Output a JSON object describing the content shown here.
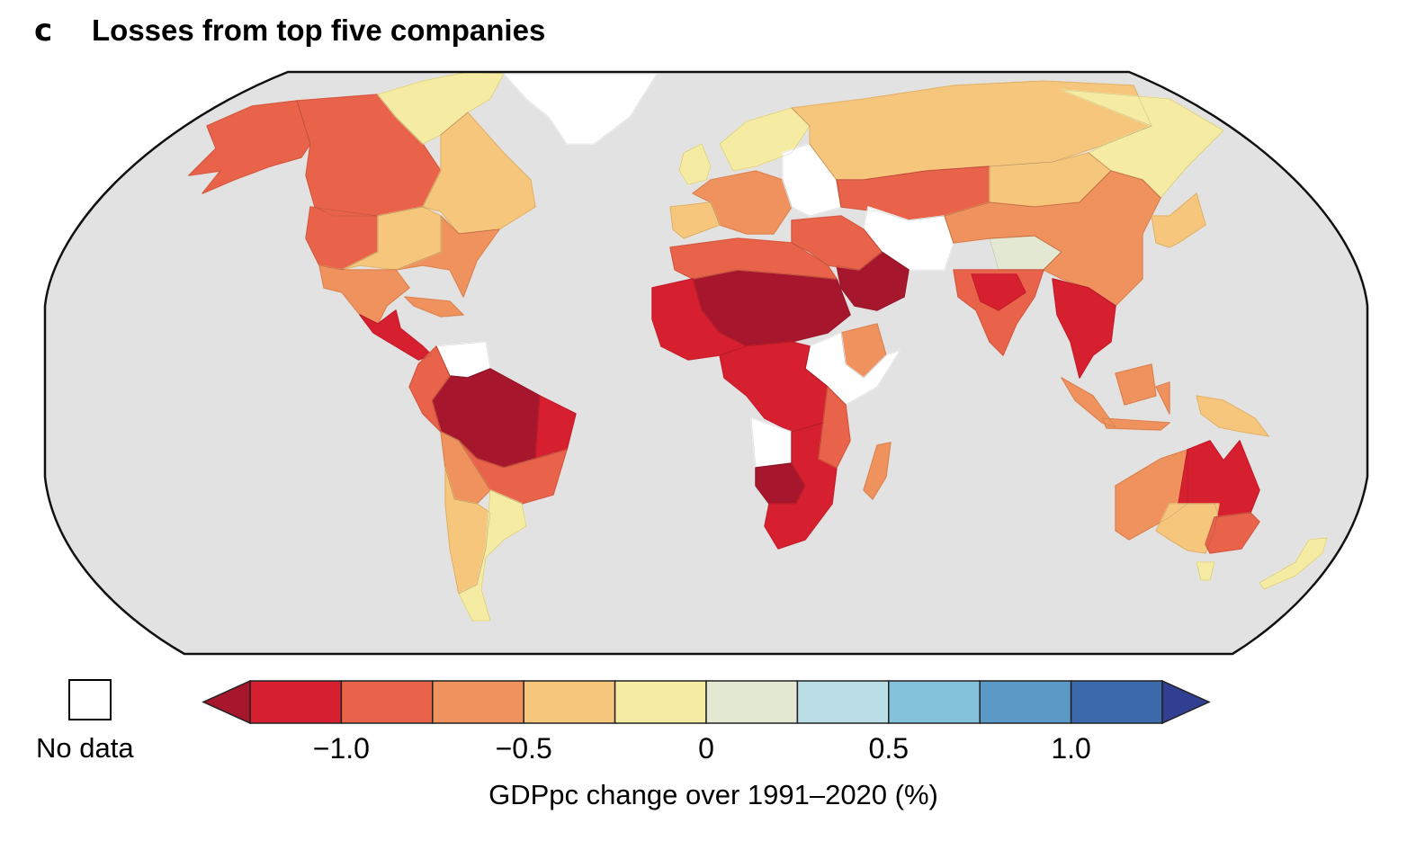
{
  "panel_letter": "c",
  "title": "Losses from top five companies",
  "no_data_label": "No data",
  "colors": {
    "ocean": "#e2e2e2",
    "no_data": "#ffffff",
    "outline": "#111111"
  },
  "legend": {
    "label": "GDPpc change over 1991–2020 (%)",
    "range": [
      -1.25,
      1.25
    ],
    "step": 0.25,
    "extend_low_color": "#a6172d",
    "extend_high_color": "#313f93",
    "bins": [
      {
        "from": -1.25,
        "to": -1.0,
        "color": "#d7202f"
      },
      {
        "from": -1.0,
        "to": -0.75,
        "color": "#e8634a"
      },
      {
        "from": -0.75,
        "to": -0.5,
        "color": "#ef925d"
      },
      {
        "from": -0.5,
        "to": -0.25,
        "color": "#f6c67d"
      },
      {
        "from": -0.25,
        "to": 0.0,
        "color": "#f6eba3"
      },
      {
        "from": 0.0,
        "to": 0.25,
        "color": "#e3e8d3"
      },
      {
        "from": 0.25,
        "to": 0.5,
        "color": "#badde6"
      },
      {
        "from": 0.5,
        "to": 0.75,
        "color": "#84c2dc"
      },
      {
        "from": 0.75,
        "to": 1.0,
        "color": "#5b99c6"
      },
      {
        "from": 1.0,
        "to": 1.25,
        "color": "#3a69ac"
      }
    ],
    "ticks": [
      {
        "value": -1.0,
        "label": "−1.0"
      },
      {
        "value": -0.5,
        "label": "−0.5"
      },
      {
        "value": 0,
        "label": "0"
      },
      {
        "value": 0.5,
        "label": "0.5"
      },
      {
        "value": 1.0,
        "label": "1.0"
      }
    ]
  },
  "chart_data": {
    "type": "heatmap",
    "subtype": "choropleth-world-map",
    "title": "Losses from top five companies",
    "colorbar_label": "GDPpc change over 1991–2020 (%)",
    "colorbar_range": [
      -1.25,
      1.25
    ],
    "colorbar_ticks": [
      -1.0,
      -0.5,
      0,
      0.5,
      1.0
    ],
    "legend_placement": "bottom",
    "regions": [
      {
        "name": "Alaska",
        "value": -0.8
      },
      {
        "name": "Western Canada",
        "value": -0.8
      },
      {
        "name": "Canadian Arctic / Northern Canada",
        "value": -0.1
      },
      {
        "name": "Eastern Canada",
        "value": -0.4
      },
      {
        "name": "Western USA",
        "value": -0.8
      },
      {
        "name": "Central & Eastern USA",
        "value": -0.6
      },
      {
        "name": "US Plains/Midwest",
        "value": -0.4
      },
      {
        "name": "Mexico",
        "value": -0.6
      },
      {
        "name": "Central America",
        "value": -1.1
      },
      {
        "name": "Caribbean",
        "value": -0.6
      },
      {
        "name": "Greenland",
        "value": null
      },
      {
        "name": "Venezuela / Guyanas",
        "value": null
      },
      {
        "name": "Amazon Basin (Brazil)",
        "value": -1.3
      },
      {
        "name": "Northeast Brazil",
        "value": -1.1
      },
      {
        "name": "Colombia / Ecuador / Peru coast",
        "value": -0.8
      },
      {
        "name": "Southern Brazil",
        "value": -0.8
      },
      {
        "name": "Bolivia / Paraguay",
        "value": -0.6
      },
      {
        "name": "Argentina north / Chile",
        "value": -0.4
      },
      {
        "name": "Patagonia / Uruguay",
        "value": -0.1
      },
      {
        "name": "Scandinavia",
        "value": -0.1
      },
      {
        "name": "UK / Ireland",
        "value": -0.1
      },
      {
        "name": "Western & Central Europe",
        "value": -0.6
      },
      {
        "name": "Iberia",
        "value": -0.4
      },
      {
        "name": "Ukraine / Eastern Europe",
        "value": null
      },
      {
        "name": "Russia (north)",
        "value": -0.4
      },
      {
        "name": "Southern Russia / Kazakhstan",
        "value": -0.8
      },
      {
        "name": "Eastern Siberia",
        "value": -0.1
      },
      {
        "name": "Central Asia / Iran",
        "value": null
      },
      {
        "name": "Mongolia",
        "value": -0.4
      },
      {
        "name": "Tibetan Plateau",
        "value": 0.1
      },
      {
        "name": "China",
        "value": -0.6
      },
      {
        "name": "Korea / Japan",
        "value": -0.4
      },
      {
        "name": "India",
        "value": -0.8
      },
      {
        "name": "Northern India",
        "value": -1.1
      },
      {
        "name": "Southeast Asia mainland",
        "value": -1.1
      },
      {
        "name": "Indonesia / Borneo",
        "value": -0.6
      },
      {
        "name": "New Guinea",
        "value": -0.4
      },
      {
        "name": "Arabian Peninsula",
        "value": -1.3
      },
      {
        "name": "Middle East",
        "value": -0.8
      },
      {
        "name": "Sahara / Sahel",
        "value": -1.3
      },
      {
        "name": "North Africa coast",
        "value": -1.0
      },
      {
        "name": "West Africa",
        "value": -1.1
      },
      {
        "name": "Ethiopia",
        "value": -0.6
      },
      {
        "name": "Somalia / South Sudan",
        "value": null
      },
      {
        "name": "Central Africa",
        "value": -1.1
      },
      {
        "name": "Angola",
        "value": null
      },
      {
        "name": "Namibia / Botswana",
        "value": -1.3
      },
      {
        "name": "Southern Africa",
        "value": -1.1
      },
      {
        "name": "East Africa",
        "value": -0.8
      },
      {
        "name": "Madagascar",
        "value": -0.6
      },
      {
        "name": "Western Australia",
        "value": -0.6
      },
      {
        "name": "Northern Australia",
        "value": -1.1
      },
      {
        "name": "South Australia",
        "value": -0.4
      },
      {
        "name": "New South Wales / Victoria",
        "value": -0.8
      },
      {
        "name": "New Zealand / Tasmania",
        "value": -0.1
      }
    ]
  }
}
